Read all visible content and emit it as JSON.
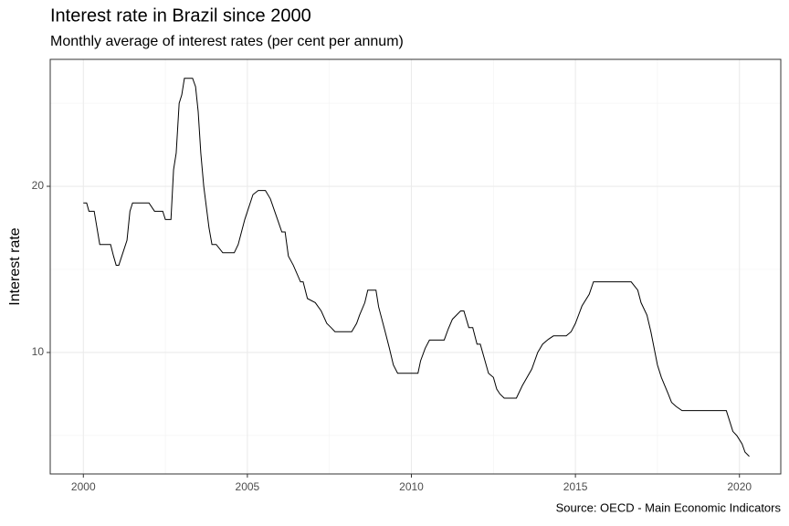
{
  "chart_data": {
    "type": "line",
    "title": "Interest rate in Brazil since 2000",
    "subtitle": "Monthly average of interest rates (per cent per annum)",
    "y_label": "Interest rate",
    "caption": "Source: OECD - Main Economic Indicators",
    "color": "#000000",
    "grid": true,
    "xlim": [
      1998.99,
      2021.26
    ],
    "ylim": [
      2.69,
      27.64
    ],
    "xticks": [
      2000,
      2005,
      2010,
      2015,
      2020
    ],
    "yticks": [
      10,
      20
    ],
    "x": [
      2000.0,
      2000.1,
      2000.17,
      2000.33,
      2000.5,
      2000.83,
      2000.92,
      2001.0,
      2001.08,
      2001.33,
      2001.42,
      2001.5,
      2002.0,
      2002.17,
      2002.42,
      2002.5,
      2002.67,
      2002.75,
      2002.83,
      2002.92,
      2003.0,
      2003.08,
      2003.33,
      2003.42,
      2003.5,
      2003.58,
      2003.67,
      2003.83,
      2003.92,
      2004.05,
      2004.25,
      2004.6,
      2004.72,
      2004.92,
      2005.17,
      2005.33,
      2005.55,
      2005.7,
      2005.92,
      2006.05,
      2006.15,
      2006.25,
      2006.4,
      2006.62,
      2006.7,
      2006.83,
      2007.07,
      2007.25,
      2007.42,
      2007.55,
      2007.67,
      2008.18,
      2008.33,
      2008.42,
      2008.58,
      2008.67,
      2008.92,
      2009.0,
      2009.2,
      2009.33,
      2009.45,
      2009.58,
      2010.2,
      2010.28,
      2010.42,
      2010.55,
      2011.0,
      2011.12,
      2011.25,
      2011.5,
      2011.6,
      2011.75,
      2011.87,
      2012.0,
      2012.1,
      2012.35,
      2012.5,
      2012.6,
      2012.7,
      2012.83,
      2013.2,
      2013.38,
      2013.67,
      2013.85,
      2014.0,
      2014.18,
      2014.33,
      2014.72,
      2014.87,
      2015.0,
      2015.2,
      2015.42,
      2015.55,
      2016.7,
      2016.9,
      2017.0,
      2017.18,
      2017.3,
      2017.5,
      2017.62,
      2017.83,
      2017.93,
      2018.07,
      2018.25,
      2019.6,
      2019.8,
      2019.92,
      2020.08,
      2020.17,
      2020.3
    ],
    "values": [
      19.0,
      19.0,
      18.5,
      18.5,
      16.5,
      16.5,
      15.8,
      15.25,
      15.25,
      16.75,
      18.5,
      19.0,
      19.0,
      18.5,
      18.5,
      18.0,
      18.0,
      21.0,
      22.0,
      25.0,
      25.5,
      26.5,
      26.5,
      26.0,
      24.5,
      22.0,
      20.0,
      17.5,
      16.5,
      16.5,
      16.0,
      16.0,
      16.5,
      18.0,
      19.5,
      19.75,
      19.75,
      19.25,
      18.0,
      17.25,
      17.25,
      15.8,
      15.25,
      14.25,
      14.25,
      13.25,
      13.0,
      12.5,
      11.75,
      11.5,
      11.25,
      11.25,
      11.75,
      12.25,
      13.0,
      13.75,
      13.75,
      12.75,
      11.25,
      10.25,
      9.25,
      8.75,
      8.75,
      9.5,
      10.25,
      10.75,
      10.75,
      11.4,
      12.0,
      12.5,
      12.5,
      11.5,
      11.5,
      10.5,
      10.5,
      8.75,
      8.5,
      7.8,
      7.5,
      7.25,
      7.25,
      8.0,
      9.0,
      10.0,
      10.5,
      10.8,
      11.0,
      11.0,
      11.25,
      11.75,
      12.8,
      13.5,
      14.25,
      14.25,
      13.75,
      13.0,
      12.25,
      11.25,
      9.25,
      8.5,
      7.5,
      7.0,
      6.75,
      6.5,
      6.5,
      5.25,
      5.0,
      4.5,
      4.0,
      3.75
    ]
  }
}
